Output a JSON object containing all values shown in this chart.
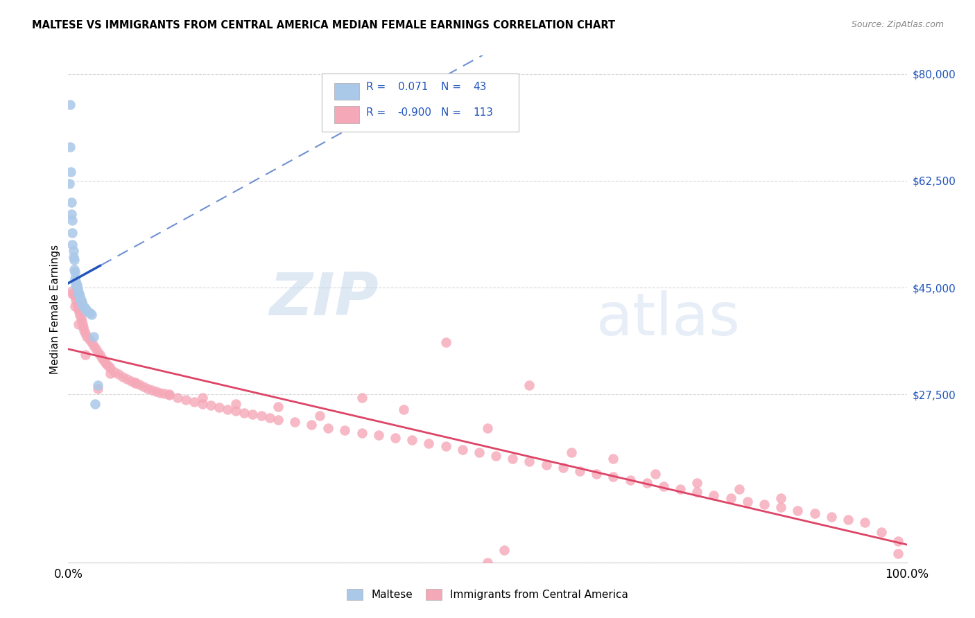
{
  "title": "MALTESE VS IMMIGRANTS FROM CENTRAL AMERICA MEDIAN FEMALE EARNINGS CORRELATION CHART",
  "source": "Source: ZipAtlas.com",
  "ylabel": "Median Female Earnings",
  "yticks": [
    0,
    27500,
    45000,
    62500,
    80000
  ],
  "ytick_labels": [
    "",
    "$27,500",
    "$45,000",
    "$62,500",
    "$80,000"
  ],
  "xlim": [
    0,
    1
  ],
  "ylim": [
    0,
    83000
  ],
  "blue_scatter_color": "#aac8e8",
  "blue_line_color": "#2255bb",
  "pink_scatter_color": "#f5a8b8",
  "pink_line_color": "#dd4466",
  "legend_text_color": "#2255bb",
  "grid_color": "#d8d8d8",
  "maltese_x": [
    0.001,
    0.002,
    0.002,
    0.003,
    0.004,
    0.004,
    0.005,
    0.005,
    0.005,
    0.006,
    0.006,
    0.007,
    0.007,
    0.008,
    0.008,
    0.009,
    0.009,
    0.01,
    0.01,
    0.011,
    0.011,
    0.012,
    0.012,
    0.013,
    0.013,
    0.014,
    0.014,
    0.015,
    0.015,
    0.016,
    0.016,
    0.017,
    0.018,
    0.019,
    0.02,
    0.021,
    0.022,
    0.024,
    0.026,
    0.028,
    0.03,
    0.032,
    0.035
  ],
  "maltese_y": [
    62000,
    75000,
    68000,
    64000,
    59000,
    57000,
    56000,
    54000,
    52000,
    51000,
    50000,
    49500,
    48000,
    47500,
    46500,
    46000,
    45500,
    45500,
    45000,
    44800,
    44500,
    44200,
    44000,
    44000,
    43800,
    43500,
    43200,
    43000,
    42800,
    42600,
    42400,
    42200,
    42000,
    41800,
    41600,
    41400,
    41200,
    41000,
    40800,
    40600,
    37000,
    26000,
    29000
  ],
  "ca_x": [
    0.005,
    0.007,
    0.009,
    0.01,
    0.011,
    0.012,
    0.013,
    0.014,
    0.015,
    0.016,
    0.017,
    0.018,
    0.019,
    0.02,
    0.022,
    0.025,
    0.028,
    0.03,
    0.033,
    0.035,
    0.038,
    0.04,
    0.043,
    0.045,
    0.048,
    0.05,
    0.055,
    0.06,
    0.065,
    0.07,
    0.075,
    0.08,
    0.085,
    0.09,
    0.095,
    0.1,
    0.105,
    0.11,
    0.115,
    0.12,
    0.13,
    0.14,
    0.15,
    0.16,
    0.17,
    0.18,
    0.19,
    0.2,
    0.21,
    0.22,
    0.23,
    0.24,
    0.25,
    0.27,
    0.29,
    0.31,
    0.33,
    0.35,
    0.37,
    0.39,
    0.41,
    0.43,
    0.45,
    0.47,
    0.49,
    0.51,
    0.53,
    0.55,
    0.57,
    0.59,
    0.61,
    0.63,
    0.65,
    0.67,
    0.69,
    0.71,
    0.73,
    0.75,
    0.77,
    0.79,
    0.81,
    0.83,
    0.85,
    0.87,
    0.89,
    0.91,
    0.93,
    0.95,
    0.97,
    0.99,
    0.005,
    0.008,
    0.012,
    0.02,
    0.035,
    0.05,
    0.08,
    0.12,
    0.16,
    0.2,
    0.25,
    0.3,
    0.35,
    0.4,
    0.45,
    0.5,
    0.55,
    0.6,
    0.65,
    0.7,
    0.75,
    0.8,
    0.85,
    0.5,
    0.52,
    0.99
  ],
  "ca_y": [
    44500,
    43800,
    43000,
    42500,
    42000,
    41500,
    41000,
    40500,
    40000,
    39500,
    39000,
    38500,
    38000,
    37500,
    37000,
    36500,
    36000,
    35500,
    35000,
    34500,
    34000,
    33500,
    33000,
    32500,
    32200,
    31800,
    31200,
    30800,
    30400,
    30000,
    29700,
    29400,
    29100,
    28800,
    28500,
    28200,
    28000,
    27800,
    27600,
    27400,
    27000,
    26600,
    26300,
    26000,
    25700,
    25400,
    25100,
    24800,
    24500,
    24200,
    24000,
    23700,
    23400,
    23000,
    22500,
    22000,
    21600,
    21200,
    20800,
    20400,
    20000,
    19500,
    19000,
    18500,
    18000,
    17500,
    17000,
    16500,
    16000,
    15500,
    15000,
    14500,
    14000,
    13500,
    13000,
    12500,
    12000,
    11500,
    11000,
    10500,
    10000,
    9500,
    9000,
    8500,
    8000,
    7500,
    7000,
    6500,
    5000,
    3500,
    44000,
    42000,
    39000,
    34000,
    28500,
    31000,
    29500,
    27500,
    27000,
    26000,
    25500,
    24000,
    27000,
    25000,
    36000,
    22000,
    29000,
    18000,
    17000,
    14500,
    13000,
    12000,
    10500,
    0,
    2000,
    1500
  ]
}
